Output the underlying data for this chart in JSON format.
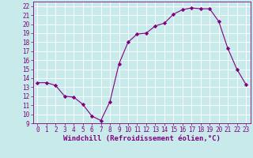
{
  "x": [
    0,
    1,
    2,
    3,
    4,
    5,
    6,
    7,
    8,
    9,
    10,
    11,
    12,
    13,
    14,
    15,
    16,
    17,
    18,
    19,
    20,
    21,
    22,
    23
  ],
  "y": [
    13.5,
    13.5,
    13.2,
    12.0,
    11.9,
    11.1,
    9.8,
    9.3,
    11.4,
    15.6,
    18.0,
    18.9,
    19.0,
    19.8,
    20.1,
    21.1,
    21.6,
    21.8,
    21.7,
    21.7,
    20.3,
    17.3,
    15.0,
    13.3
  ],
  "line_color": "#800080",
  "marker": "D",
  "marker_size": 2.2,
  "bg_color": "#c8eaea",
  "grid_color": "#aad4d4",
  "xlim": [
    -0.5,
    23.5
  ],
  "ylim": [
    9,
    22.5
  ],
  "yticks": [
    9,
    10,
    11,
    12,
    13,
    14,
    15,
    16,
    17,
    18,
    19,
    20,
    21,
    22
  ],
  "xticks": [
    0,
    1,
    2,
    3,
    4,
    5,
    6,
    7,
    8,
    9,
    10,
    11,
    12,
    13,
    14,
    15,
    16,
    17,
    18,
    19,
    20,
    21,
    22,
    23
  ],
  "xlabel": "Windchill (Refroidissement éolien,°C)",
  "tick_fontsize": 5.5,
  "label_fontsize": 6.5
}
